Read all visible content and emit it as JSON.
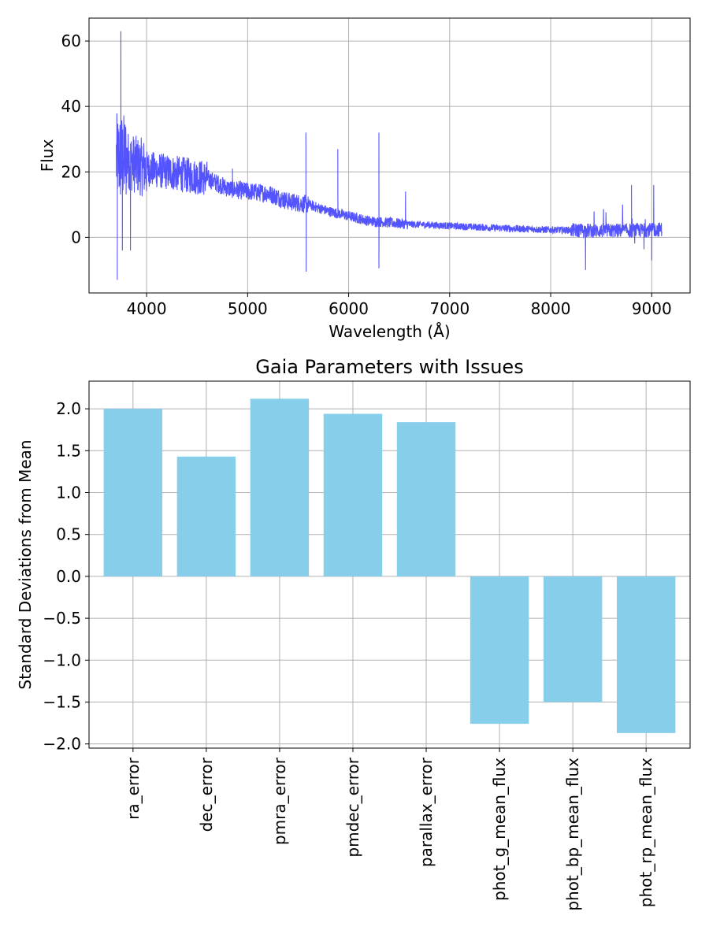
{
  "chart_data": [
    {
      "type": "line",
      "title": "",
      "xlabel": "Wavelength (Å)",
      "ylabel": "Flux",
      "xlim": [
        3430,
        9380
      ],
      "ylim": [
        -17,
        67
      ],
      "xticks": [
        4000,
        5000,
        6000,
        7000,
        8000,
        9000
      ],
      "yticks": [
        0,
        20,
        40,
        60
      ],
      "grid": true,
      "color": "#4b4bff",
      "x_range": [
        3700,
        9100
      ],
      "series": [
        {
          "continuum": [
            [
              3700,
              24
            ],
            [
              3800,
              24
            ],
            [
              3900,
              22
            ],
            [
              4000,
              21
            ],
            [
              4200,
              20
            ],
            [
              4400,
              19
            ],
            [
              4600,
              18
            ],
            [
              4800,
              15
            ],
            [
              5000,
              14
            ],
            [
              5200,
              13.5
            ],
            [
              5400,
              11
            ],
            [
              5600,
              10
            ],
            [
              5800,
              8
            ],
            [
              6000,
              6.5
            ],
            [
              6200,
              5
            ],
            [
              6400,
              4.5
            ],
            [
              6600,
              4
            ],
            [
              6800,
              3.8
            ],
            [
              7000,
              3.5
            ],
            [
              7500,
              2.8
            ],
            [
              8000,
              2.3
            ],
            [
              8500,
              2
            ],
            [
              9000,
              2.2
            ],
            [
              9100,
              2.5
            ]
          ],
          "features": [
            {
              "x": 3710,
              "y": -13
            },
            {
              "x": 3745,
              "y": 63
            },
            {
              "x": 3760,
              "y": -4
            },
            {
              "x": 3840,
              "y": -4
            },
            {
              "x": 4850,
              "y": 21
            },
            {
              "x": 5577,
              "y": 32
            },
            {
              "x": 5580,
              "y": -10.5
            },
            {
              "x": 5893,
              "y": 27
            },
            {
              "x": 6300,
              "y": 32
            },
            {
              "x": 6300,
              "y": -9.5
            },
            {
              "x": 6563,
              "y": 14
            },
            {
              "x": 8345,
              "y": -10
            },
            {
              "x": 8800,
              "y": 16
            },
            {
              "x": 9020,
              "y": 16
            },
            {
              "x": 9000,
              "y": -7
            }
          ]
        }
      ]
    },
    {
      "type": "bar",
      "title": "Gaia Parameters with Issues",
      "xlabel": "",
      "ylabel": "Standard Deviations from Mean",
      "categories": [
        "ra_error",
        "dec_error",
        "pmra_error",
        "pmdec_error",
        "parallax_error",
        "phot_g_mean_flux",
        "phot_bp_mean_flux",
        "phot_rp_mean_flux"
      ],
      "values": [
        2.0,
        1.43,
        2.12,
        1.94,
        1.84,
        -1.76,
        -1.5,
        -1.87
      ],
      "ylim": [
        -2.05,
        2.33
      ],
      "yticks": [
        2.0,
        1.5,
        1.0,
        0.5,
        0.0,
        -0.5,
        -1.0,
        -1.5,
        -2.0
      ],
      "ytick_labels": [
        "2.0",
        "1.5",
        "1.0",
        "0.5",
        "0.0",
        "−0.5",
        "−1.0",
        "−1.5",
        "−2.0"
      ],
      "grid": true,
      "color": "#87ceeb"
    }
  ]
}
